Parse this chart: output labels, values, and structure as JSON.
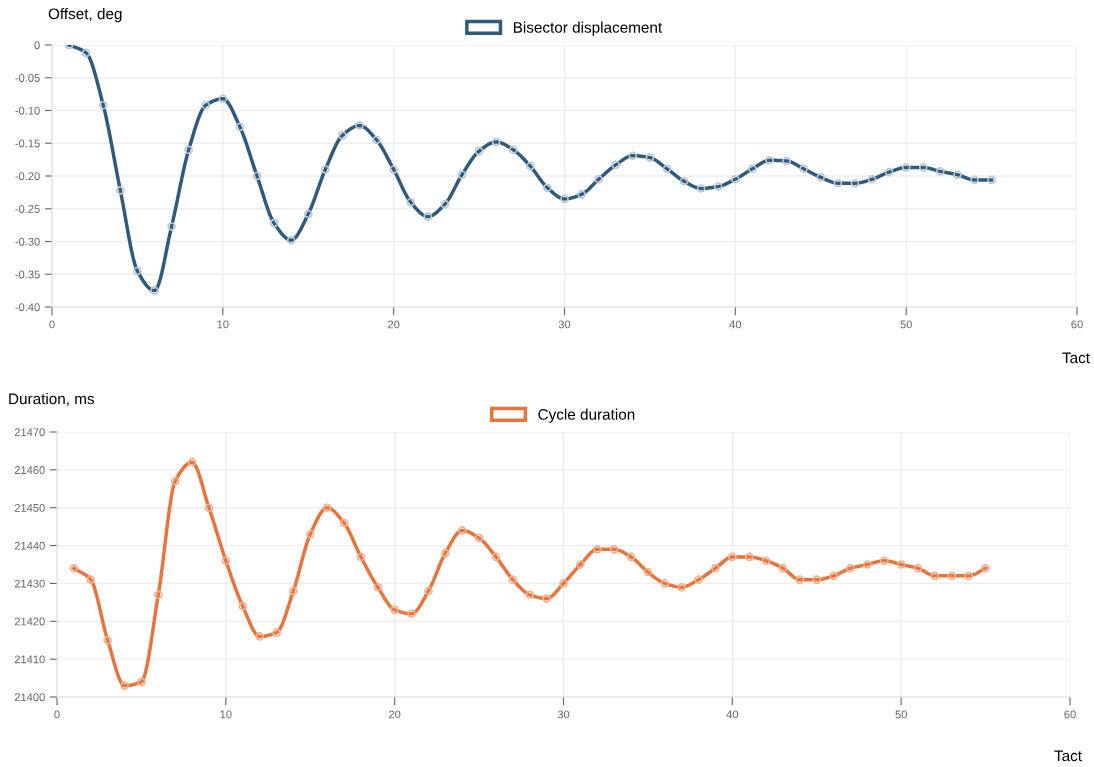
{
  "chart_data": [
    {
      "type": "line",
      "ylabel": "Offset, deg",
      "xlabel": "Tact",
      "legend": "top",
      "grid": true,
      "marker": "circle",
      "line_style": "solid",
      "x": [
        1,
        2,
        3,
        4,
        5,
        6,
        7,
        8,
        9,
        10,
        11,
        12,
        13,
        14,
        15,
        16,
        17,
        18,
        19,
        20,
        21,
        22,
        23,
        24,
        25,
        26,
        27,
        28,
        29,
        30,
        31,
        32,
        33,
        34,
        35,
        36,
        37,
        38,
        39,
        40,
        41,
        42,
        43,
        44,
        45,
        46,
        47,
        48,
        49,
        50,
        51,
        52,
        53,
        54,
        55
      ],
      "series": [
        {
          "name": "Bisector displacement",
          "color": "#2e5a7e",
          "values": [
            0,
            -0.012,
            -0.092,
            -0.222,
            -0.345,
            -0.375,
            -0.277,
            -0.16,
            -0.092,
            -0.082,
            -0.125,
            -0.2,
            -0.272,
            -0.298,
            -0.258,
            -0.19,
            -0.138,
            -0.123,
            -0.145,
            -0.19,
            -0.24,
            -0.262,
            -0.243,
            -0.198,
            -0.162,
            -0.148,
            -0.16,
            -0.185,
            -0.218,
            -0.235,
            -0.228,
            -0.205,
            -0.183,
            -0.169,
            -0.172,
            -0.189,
            -0.208,
            -0.219,
            -0.216,
            -0.205,
            -0.189,
            -0.176,
            -0.177,
            -0.189,
            -0.202,
            -0.211,
            -0.211,
            -0.205,
            -0.194,
            -0.187,
            -0.187,
            -0.193,
            -0.198,
            -0.206,
            -0.206
          ]
        }
      ],
      "xlim": [
        0,
        60
      ],
      "xticks": [
        0,
        10,
        20,
        30,
        40,
        50,
        60
      ],
      "ylim": [
        -0.4,
        0
      ],
      "yticks": [
        {
          "value": -0.4,
          "label": "-0.40"
        },
        {
          "value": -0.35,
          "label": "-0.35"
        },
        {
          "value": -0.3,
          "label": "-0.30"
        },
        {
          "value": -0.25,
          "label": "-0.25"
        },
        {
          "value": -0.2,
          "label": "-0.20"
        },
        {
          "value": -0.15,
          "label": "-0.15"
        },
        {
          "value": -0.1,
          "label": "-0.10"
        },
        {
          "value": -0.05,
          "label": "-0.05"
        },
        0
      ]
    },
    {
      "type": "line",
      "ylabel": "Duration, ms",
      "xlabel": "Tact",
      "legend": "top",
      "grid": true,
      "marker": "circle",
      "line_style": "solid",
      "x": [
        1,
        2,
        3,
        4,
        5,
        6,
        7,
        8,
        9,
        10,
        11,
        12,
        13,
        14,
        15,
        16,
        17,
        18,
        19,
        20,
        21,
        22,
        23,
        24,
        25,
        26,
        27,
        28,
        29,
        30,
        31,
        32,
        33,
        34,
        35,
        36,
        37,
        38,
        39,
        40,
        41,
        42,
        43,
        44,
        45,
        46,
        47,
        48,
        49,
        50,
        51,
        52,
        53,
        54,
        55
      ],
      "series": [
        {
          "name": "Cycle duration",
          "color": "#e8743b",
          "values": [
            21434,
            21431,
            21415,
            21403,
            21404,
            21427,
            21457,
            21462,
            21450,
            21436,
            21424,
            21416,
            21417,
            21428,
            21443,
            21450,
            21446,
            21437,
            21429,
            21423,
            21422,
            21428,
            21438,
            21444,
            21442,
            21437,
            21431,
            21427,
            21426,
            21430,
            21435,
            21439,
            21439,
            21437,
            21433,
            21430,
            21429,
            21431,
            21434,
            21437,
            21437,
            21436,
            21434,
            21431,
            21431,
            21432,
            21434,
            21435,
            21436,
            21435,
            21434,
            21432,
            21432,
            21432,
            21434
          ]
        }
      ],
      "xlim": [
        0,
        60
      ],
      "xticks": [
        0,
        10,
        20,
        30,
        40,
        50,
        60
      ],
      "ylim": [
        21400,
        21470
      ],
      "yticks": [
        21400,
        21410,
        21420,
        21430,
        21440,
        21450,
        21460,
        21470
      ]
    }
  ]
}
